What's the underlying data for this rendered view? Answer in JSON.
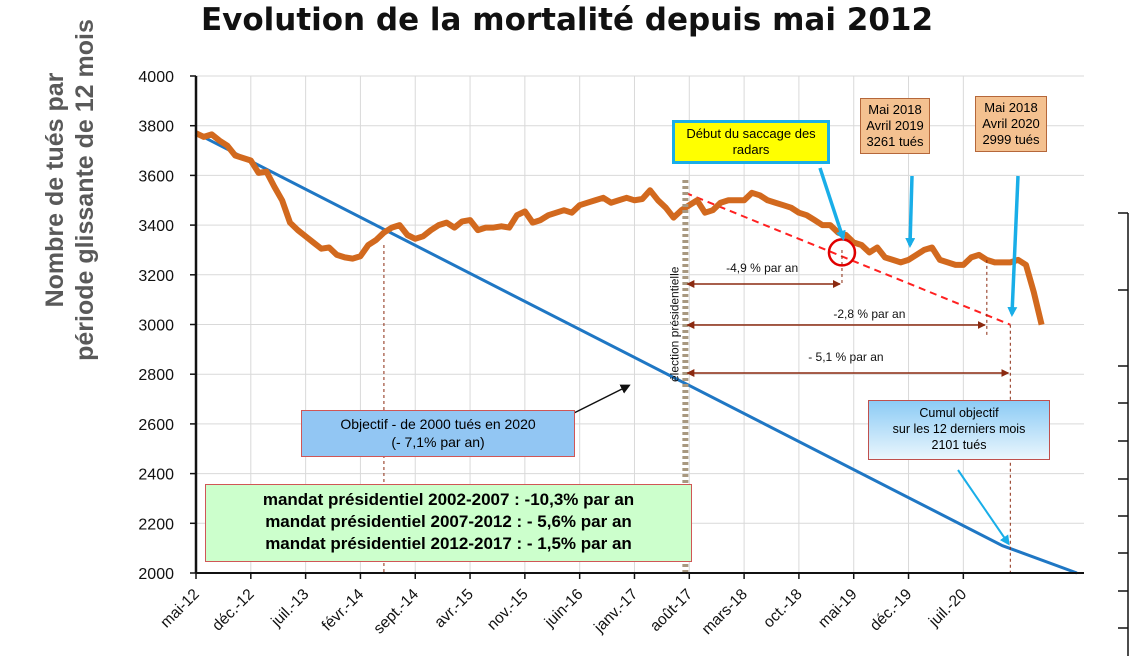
{
  "chart_data": {
    "type": "line",
    "title": "Evolution de la mortalité depuis mai 2012",
    "ylabel_lines": [
      "Nombre de tués par",
      "période  glissante de 12 mois"
    ],
    "ylim": [
      2000,
      4000
    ],
    "yticks": [
      "4000",
      "3800",
      "3600",
      "3400",
      "3200",
      "3000",
      "2800",
      "2600",
      "2400",
      "2200",
      "2000"
    ],
    "xticks": [
      "mai-12",
      "déc.-12",
      "juil.-13",
      "févr.-14",
      "sept.-14",
      "avr.-15",
      "nov.-15",
      "juin-16",
      "janv.-17",
      "août-17",
      "mars-18",
      "oct.-18",
      "mai-19",
      "déc.-19",
      "juil.-20"
    ],
    "grid": true,
    "series": [
      {
        "color": "#d2691e",
        "x_start": "mai-12",
        "step": "month",
        "values": [
          3770,
          3755,
          3765,
          3740,
          3720,
          3680,
          3670,
          3660,
          3610,
          3615,
          3555,
          3500,
          3410,
          3380,
          3355,
          3330,
          3305,
          3310,
          3280,
          3270,
          3265,
          3275,
          3320,
          3340,
          3370,
          3390,
          3400,
          3360,
          3345,
          3355,
          3380,
          3400,
          3410,
          3390,
          3415,
          3420,
          3380,
          3390,
          3390,
          3395,
          3390,
          3440,
          3455,
          3410,
          3420,
          3440,
          3450,
          3460,
          3450,
          3480,
          3490,
          3500,
          3510,
          3490,
          3500,
          3510,
          3500,
          3505,
          3540,
          3500,
          3470,
          3430,
          3460,
          3480,
          3500,
          3450,
          3460,
          3490,
          3500,
          3500,
          3500,
          3530,
          3520,
          3500,
          3490,
          3480,
          3470,
          3450,
          3440,
          3420,
          3400,
          3400,
          3370,
          3360,
          3330,
          3320,
          3290,
          3310,
          3270,
          3260,
          3250,
          3260,
          3280,
          3300,
          3310,
          3260,
          3250,
          3240,
          3240,
          3270,
          3280,
          3260,
          3250,
          3250,
          3250,
          3260,
          3240,
          3130,
          2999
        ]
      },
      {
        "color": "#1f77c4",
        "name": "Objectif - de 2000 tués en 2020",
        "x_start": "mai-12",
        "step": "month",
        "values_note": "linear decrease",
        "start_value": 3770,
        "end_x_month_index": 103,
        "end_value": 2110,
        "final_value": 2000
      }
    ],
    "reference_lines": [
      {
        "label": "élection présidentielle",
        "x": "mai-17",
        "style": "thick-dotted",
        "color": "#a89880"
      }
    ],
    "trend_line": {
      "from": "mai-17",
      "from_value": 3530,
      "to": "avr.-20",
      "to_value": 2999,
      "color": "#ff2020",
      "style": "dashed"
    },
    "annotations": [
      {
        "text": "-4,9 % par an"
      },
      {
        "text": "-2,8 % par an"
      },
      {
        "text": "- 5,1 % par an"
      }
    ],
    "callouts": {
      "radars": "Début du saccage des radars",
      "mai2019": [
        "Mai 2018",
        "Avril 2019",
        "3261 tués"
      ],
      "mai2020": [
        "Mai 2018",
        "Avril 2020",
        "2999 tués"
      ],
      "objectif": [
        "Objectif - de 2000 tués en 2020",
        "(- 7,1% par an)"
      ],
      "cumul": [
        "Cumul objectif",
        "sur les 12 derniers mois",
        "2101 tués"
      ],
      "mandats": [
        "mandat présidentiel 2002-2007 : -10,3% par an",
        "mandat présidentiel 2007-2012 : - 5,6% par an",
        "mandat présidentiel 2012-2017 : - 1,5% par an"
      ]
    }
  }
}
